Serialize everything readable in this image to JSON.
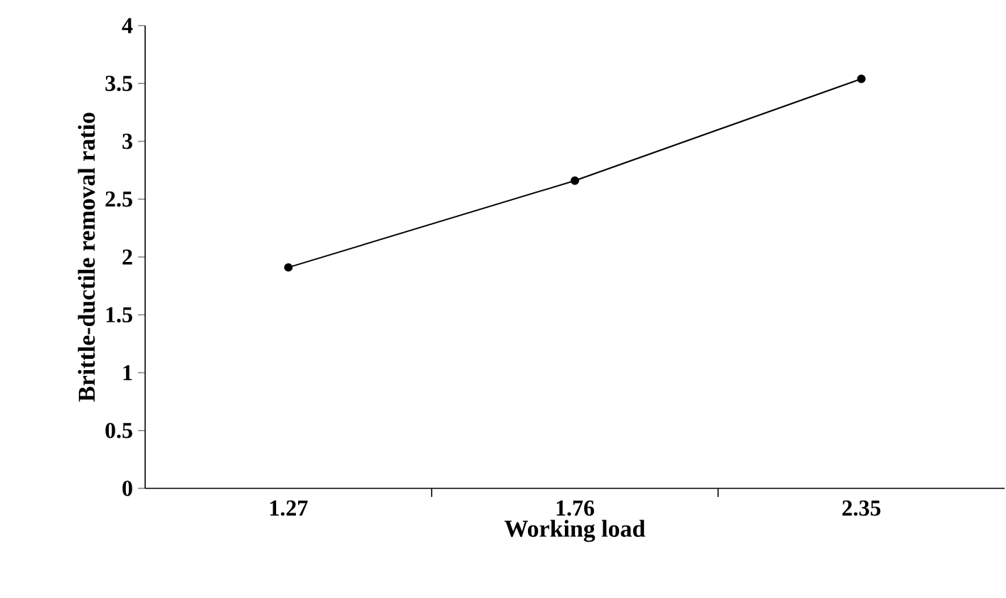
{
  "chart_data": {
    "type": "line",
    "xlabel": "Working load",
    "ylabel": "Brittle-ductile removal ratio",
    "categories": [
      "1.27",
      "1.76",
      "2.35"
    ],
    "series": [
      {
        "color": "#000000",
        "values": [
          1.91,
          2.66,
          3.54
        ]
      }
    ],
    "ylim": [
      0,
      4
    ],
    "yticks": [
      0,
      0.5,
      1,
      1.5,
      2,
      2.5,
      3,
      3.5,
      4
    ],
    "grid": false,
    "marker": "circle",
    "line_style": "solid"
  }
}
